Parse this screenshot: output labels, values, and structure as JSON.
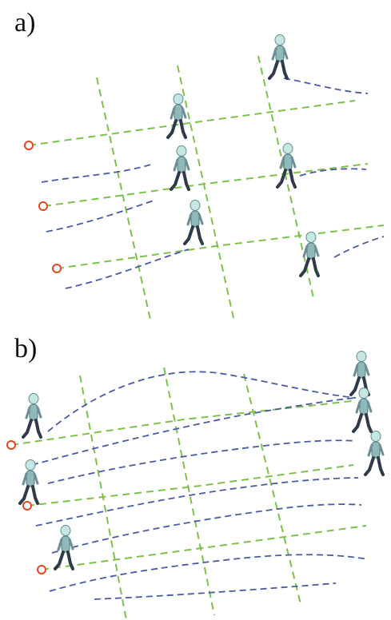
{
  "panels": [
    {
      "id": "a",
      "label": "a)"
    },
    {
      "id": "b",
      "label": "b)"
    }
  ],
  "colors": {
    "grid_path": "#7cc24a",
    "trajectory": "#4a5aa6",
    "start_marker": "#e8451f",
    "figure_body": "#8fb8b8",
    "figure_head": "#c6e6e2",
    "figure_dark": "#2f3a4a"
  },
  "icons": [
    "walking-character-icon",
    "start-point-icon"
  ]
}
